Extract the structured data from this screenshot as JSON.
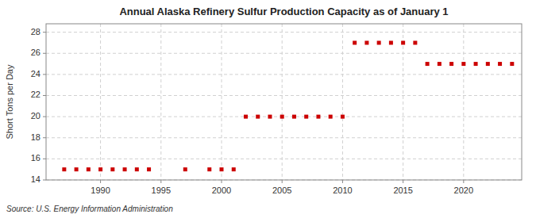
{
  "chart_data": {
    "type": "scatter",
    "title": "Annual Alaska Refinery Sulfur Production Capacity as of January 1",
    "ylabel": "Short Tons per Day",
    "annotations": [
      "Source: U.S. Energy Information Administration"
    ],
    "x": [
      1987,
      1988,
      1989,
      1990,
      1991,
      1992,
      1993,
      1994,
      1997,
      1999,
      2000,
      2001,
      2002,
      2003,
      2004,
      2005,
      2006,
      2007,
      2008,
      2009,
      2010,
      2011,
      2012,
      2013,
      2014,
      2015,
      2016,
      2017,
      2018,
      2019,
      2020,
      2021,
      2022,
      2023,
      2024
    ],
    "values": [
      15,
      15,
      15,
      15,
      15,
      15,
      15,
      15,
      15,
      15,
      15,
      15,
      20,
      20,
      20,
      20,
      20,
      20,
      20,
      20,
      20,
      27,
      27,
      27,
      27,
      27,
      27,
      25,
      25,
      25,
      25,
      25,
      25,
      25,
      25
    ],
    "color": "#cc0000",
    "marker": "square",
    "grid": true,
    "xlim": [
      1985.5,
      2024.8
    ],
    "ylim": [
      14,
      28.8
    ],
    "xticks": [
      1990,
      1995,
      2000,
      2005,
      2010,
      2015,
      2020
    ],
    "yticks": [
      14,
      16,
      18,
      20,
      22,
      24,
      26,
      28
    ]
  }
}
